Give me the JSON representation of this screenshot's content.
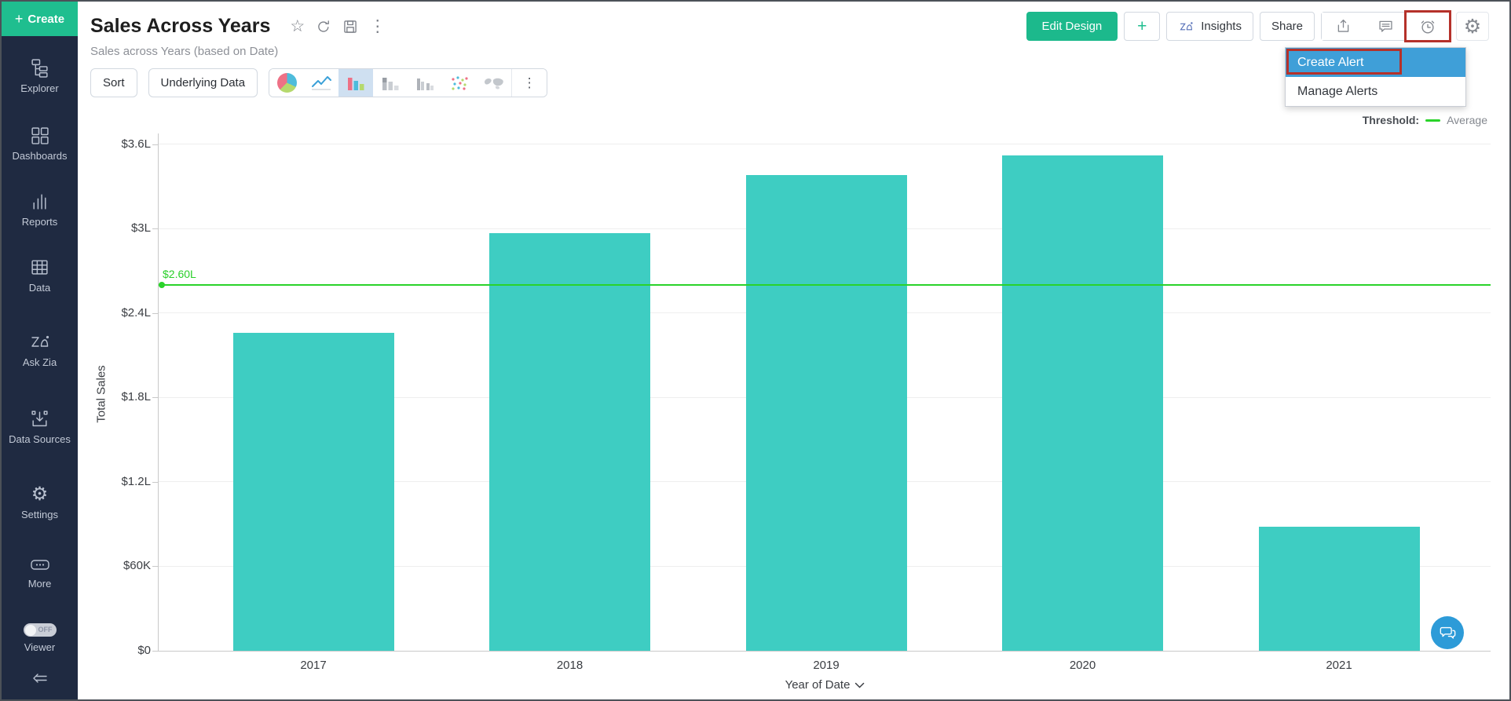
{
  "sidebar": {
    "create_label": "Create",
    "items": [
      {
        "label": "Explorer",
        "icon": "hierarchy-icon"
      },
      {
        "label": "Dashboards",
        "icon": "grid-icon"
      },
      {
        "label": "Reports",
        "icon": "bars-icon"
      },
      {
        "label": "Data",
        "icon": "table-icon"
      },
      {
        "label": "Ask Zia",
        "icon": "zia-icon"
      },
      {
        "label": "Data Sources",
        "icon": "import-icon"
      },
      {
        "label": "Settings",
        "icon": "gear-icon"
      },
      {
        "label": "More",
        "icon": "ellipsis-icon"
      },
      {
        "label": "Viewer",
        "icon": "toggle-icon",
        "toggle_state": "OFF"
      }
    ]
  },
  "header": {
    "title": "Sales Across Years",
    "subtitle": "Sales across Years (based on Date)",
    "actions": {
      "edit_design": "Edit Design",
      "add": "+",
      "insights": "Insights",
      "share": "Share"
    }
  },
  "alert_menu": {
    "items": [
      {
        "label": "Create Alert",
        "selected": true
      },
      {
        "label": "Manage Alerts",
        "selected": false
      }
    ]
  },
  "toolbar": {
    "sort": "Sort",
    "underlying_data": "Underlying Data"
  },
  "chart_data": {
    "type": "bar",
    "title": "Sales Across Years",
    "categories": [
      "2017",
      "2018",
      "2019",
      "2020",
      "2021"
    ],
    "values": [
      2.26,
      2.97,
      3.38,
      3.52,
      0.88
    ],
    "value_unit": "lakh dollars (L = 100K)",
    "series_name": "Total Sales",
    "xlabel": "Year of Date",
    "ylabel": "Total Sales",
    "ylim": [
      0,
      3.6
    ],
    "yticks": [
      {
        "v": 0,
        "label": "$0"
      },
      {
        "v": 0.6,
        "label": "$60K"
      },
      {
        "v": 1.2,
        "label": "$1.2L"
      },
      {
        "v": 1.8,
        "label": "$1.8L"
      },
      {
        "v": 2.4,
        "label": "$2.4L"
      },
      {
        "v": 3.0,
        "label": "$3L"
      },
      {
        "v": 3.6,
        "label": "$3.6L"
      }
    ],
    "threshold": {
      "value": 2.6,
      "label": "$2.60L",
      "name": "Average"
    },
    "legend": {
      "position": "top-right",
      "threshold_label": "Threshold:",
      "entry": "Average"
    },
    "grid": true
  },
  "colors": {
    "bar": "#3ecdc2",
    "threshold_line": "#2ad32a",
    "accent_green": "#1fbe8f",
    "selection_blue": "#3f9fd8",
    "annotation_red": "#b5312a",
    "sidebar_bg": "#1f2a41"
  }
}
